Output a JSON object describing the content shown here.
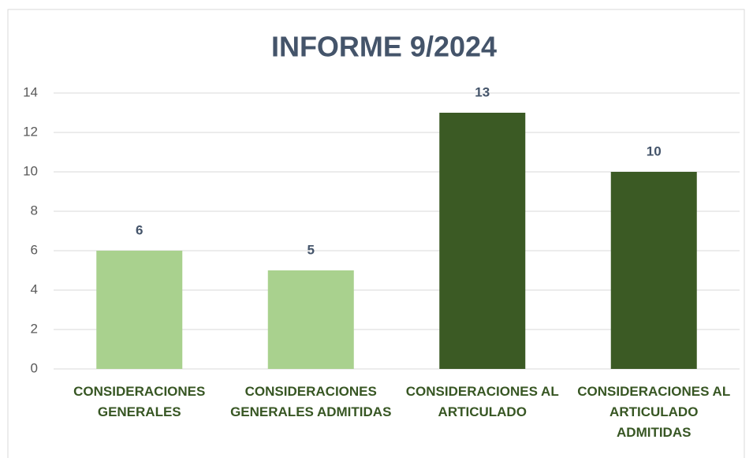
{
  "chart_data": {
    "type": "bar",
    "title": "INFORME 9/2024",
    "categories": [
      "CONSIDERACIONES GENERALES",
      "CONSIDERACIONES GENERALES ADMITIDAS",
      "CONSIDERACIONES AL ARTICULADO",
      "CONSIDERACIONES AL ARTICULADO ADMITIDAS"
    ],
    "values": [
      6,
      5,
      13,
      10
    ],
    "colors": [
      "#a9d18e",
      "#a9d18e",
      "#3b5a24",
      "#3b5a24"
    ],
    "ylim": [
      0,
      14
    ],
    "yticks": [
      0,
      2,
      4,
      6,
      8,
      10,
      12,
      14
    ],
    "grid": true
  }
}
